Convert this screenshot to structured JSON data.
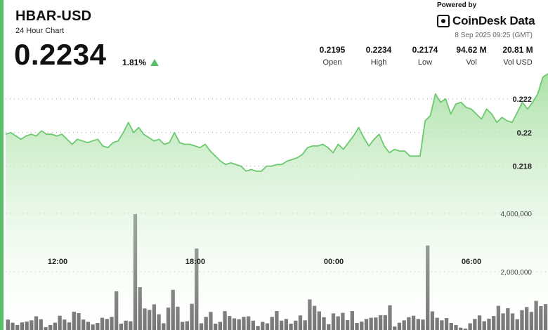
{
  "header": {
    "ticker": "HBAR-USD",
    "subtitle": "24 Hour Chart",
    "price": "0.2234",
    "change": "1.81%",
    "powered_by": "Powered by",
    "brand": "CoinDesk Data",
    "timestamp": "8 Sep 2025 09:25 (GMT)"
  },
  "stats": [
    {
      "value": "0.2195",
      "label": "Open"
    },
    {
      "value": "0.2234",
      "label": "High"
    },
    {
      "value": "0.2174",
      "label": "Low"
    },
    {
      "value": "94.62 M",
      "label": "Vol"
    },
    {
      "value": "20.81 M",
      "label": "Vol USD"
    }
  ],
  "colors": {
    "accent": "#5bbf6a",
    "line": "#6cc96f",
    "volume_bar": "#555555"
  },
  "chart_data": {
    "type": "area",
    "x_ticks": [
      "12:00",
      "18:00",
      "00:00",
      "06:00"
    ],
    "y_ticks": [
      0.218,
      0.22,
      0.222
    ],
    "y_tick_labels": [
      "0.218",
      "0.22",
      "0.222"
    ],
    "ylim": [
      0.2141,
      0.2235
    ],
    "grid": true,
    "series": [
      {
        "values": [
          0.2199,
          0.22,
          0.2198,
          0.2196,
          0.2198,
          0.2199,
          0.2198,
          0.2201,
          0.2199,
          0.2199,
          0.2198,
          0.2199,
          0.2196,
          0.2193,
          0.2196,
          0.2195,
          0.2194,
          0.2195,
          0.2196,
          0.2192,
          0.2191,
          0.2194,
          0.2195,
          0.22,
          0.2206,
          0.22,
          0.2203,
          0.2199,
          0.2197,
          0.2195,
          0.2196,
          0.2193,
          0.2194,
          0.22,
          0.2194,
          0.2193,
          0.2193,
          0.2192,
          0.2191,
          0.2193,
          0.2189,
          0.2186,
          0.2183,
          0.2181,
          0.2182,
          0.2181,
          0.218,
          0.2177,
          0.2178,
          0.2177,
          0.2177,
          0.218,
          0.218,
          0.2181,
          0.2181,
          0.2183,
          0.2184,
          0.2185,
          0.2187,
          0.2191,
          0.2192,
          0.2192,
          0.2193,
          0.2191,
          0.2188,
          0.2193,
          0.219,
          0.2194,
          0.2198,
          0.2203,
          0.2197,
          0.2192,
          0.2196,
          0.2199,
          0.2192,
          0.2188,
          0.219,
          0.2189,
          0.2189,
          0.2186,
          0.2186,
          0.2186,
          0.2207,
          0.221,
          0.2223,
          0.2218,
          0.222,
          0.2211,
          0.2217,
          0.2218,
          0.2215,
          0.2214,
          0.2211,
          0.2208,
          0.2214,
          0.2211,
          0.2206,
          0.2209,
          0.2207,
          0.2206,
          0.2212,
          0.2218,
          0.2214,
          0.2218,
          0.2223,
          0.2233,
          0.2235
        ]
      }
    ],
    "volume": {
      "ylim": [
        0,
        4700000
      ],
      "y_ticks": [
        2000000,
        4000000
      ],
      "y_tick_labels": [
        "2,000,000",
        "4,000,000"
      ],
      "values": [
        360000,
        250000,
        170000,
        260000,
        290000,
        330000,
        470000,
        370000,
        100000,
        170000,
        250000,
        490000,
        360000,
        260000,
        630000,
        580000,
        360000,
        280000,
        190000,
        240000,
        420000,
        380000,
        450000,
        1330000,
        220000,
        320000,
        300000,
        3980000,
        1470000,
        740000,
        690000,
        880000,
        540000,
        230000,
        770000,
        1380000,
        800000,
        280000,
        300000,
        900000,
        2800000,
        230000,
        450000,
        620000,
        220000,
        280000,
        650000,
        480000,
        400000,
        370000,
        450000,
        470000,
        320000,
        140000,
        280000,
        230000,
        450000,
        650000,
        320000,
        380000,
        220000,
        320000,
        500000,
        330000,
        1050000,
        830000,
        640000,
        440000,
        200000,
        570000,
        470000,
        590000,
        340000,
        650000,
        240000,
        290000,
        380000,
        420000,
        430000,
        510000,
        510000,
        850000,
        120000,
        250000,
        330000,
        440000,
        490000,
        380000,
        360000,
        2900000,
        640000,
        420000,
        330000,
        410000,
        240000,
        170000,
        80000,
        50000,
        230000,
        380000,
        500000,
        300000,
        390000,
        480000,
        830000,
        570000,
        750000,
        570000,
        370000,
        680000,
        790000,
        620000,
        1000000,
        820000,
        890000
      ]
    }
  }
}
